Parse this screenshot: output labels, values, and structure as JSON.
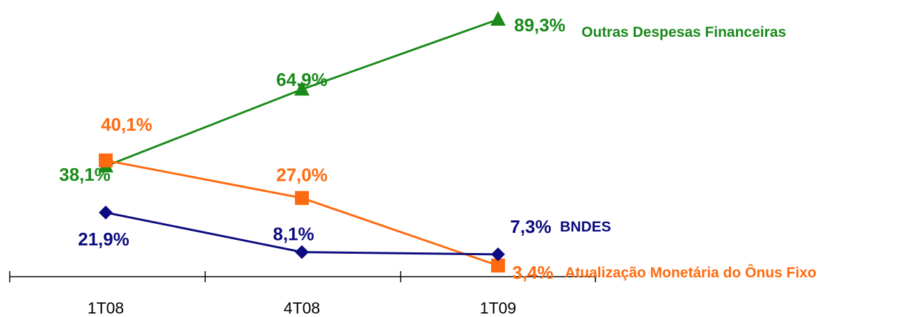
{
  "chart_data": {
    "type": "line",
    "categories": [
      "1T08",
      "4T08",
      "1T09"
    ],
    "series": [
      {
        "name": "Outras Despesas Financeiras",
        "values": [
          38.1,
          64.9,
          89.3
        ],
        "labels": [
          "38,1%",
          "64,9%",
          "89,3%"
        ],
        "color": "#1a8a1a",
        "marker": "triangle"
      },
      {
        "name": "Atualização Monetária do Ônus Fixo",
        "values": [
          40.1,
          27.0,
          3.4
        ],
        "labels": [
          "40,1%",
          "27,0%",
          "3,4%"
        ],
        "color": "#ff6a10",
        "marker": "square"
      },
      {
        "name": "BNDES",
        "values": [
          21.9,
          8.1,
          7.3
        ],
        "labels": [
          "21,9%",
          "8,1%",
          "7,3%"
        ],
        "color": "#0c0c80",
        "marker": "diamond"
      }
    ],
    "title": "",
    "xlabel": "",
    "ylabel": "",
    "legend": "right-of-last-point",
    "grid": false
  }
}
